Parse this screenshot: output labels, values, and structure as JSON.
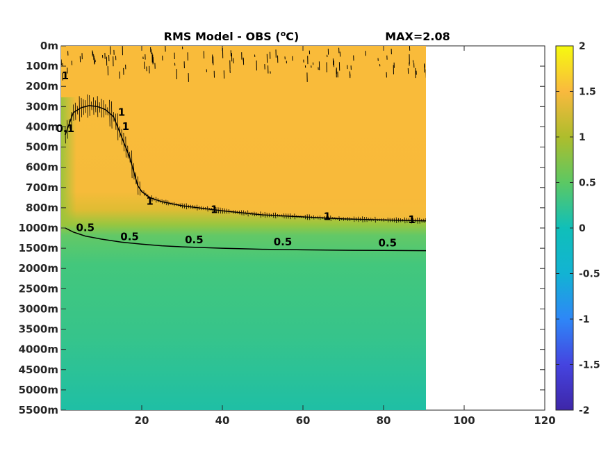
{
  "chart_data": {
    "type": "heatmap",
    "title": "RMS Model - OBS (",
    "title_sup": "o",
    "title_unit": "C)",
    "max_label": "MAX=2.08",
    "xlabel": "",
    "ylabel": "",
    "xlim": [
      0,
      120
    ],
    "x_ticks": [
      20,
      40,
      60,
      80,
      100,
      120
    ],
    "x_tick_labels": [
      "20",
      "40",
      "60",
      "80",
      "100",
      "120"
    ],
    "data_x_extent": [
      1,
      91
    ],
    "y_tick_labels": [
      "0m",
      "100m",
      "200m",
      "300m",
      "400m",
      "500m",
      "600m",
      "700m",
      "800m",
      "1000m",
      "1500m",
      "2000m",
      "2500m",
      "3000m",
      "3500m",
      "4000m",
      "4500m",
      "5000m",
      "5500m"
    ],
    "colorbar": {
      "colormap": "parula",
      "clim": [
        -2,
        2
      ],
      "ticks": [
        2,
        1.5,
        1,
        0.5,
        0,
        -0.5,
        -1,
        -1.5,
        -2
      ],
      "tick_labels": [
        "2",
        "1.5",
        "1",
        "0.5",
        "0",
        "-0.5",
        "-1",
        "-1.5",
        "-2"
      ]
    },
    "field_summary": {
      "upper_value": 1.35,
      "mid_value": 0.9,
      "deep_value": 0.4,
      "bottom_value": 0.2
    },
    "contours": [
      {
        "level": 1,
        "x": [
          1,
          3,
          5,
          7,
          9,
          11,
          13,
          15,
          17,
          18,
          19,
          20,
          22,
          25,
          30,
          40,
          50,
          60,
          70,
          80,
          91
        ],
        "depth_index": [
          4.4,
          3.3,
          3.05,
          2.95,
          3.0,
          3.15,
          3.5,
          4.5,
          5.5,
          6.2,
          6.9,
          7.2,
          7.5,
          7.7,
          7.9,
          8.15,
          8.35,
          8.45,
          8.55,
          8.6,
          8.65
        ]
      },
      {
        "level": 0.5,
        "x": [
          1,
          3,
          6,
          10,
          15,
          20,
          25,
          30,
          40,
          50,
          60,
          70,
          80,
          91
        ],
        "depth_index": [
          9.0,
          9.2,
          9.4,
          9.55,
          9.7,
          9.8,
          9.88,
          9.93,
          10.0,
          10.05,
          10.08,
          10.1,
          10.11,
          10.12
        ]
      }
    ],
    "contour_labels": [
      {
        "text": "0.5",
        "x": 6,
        "depth_index": 9.0
      },
      {
        "text": "0.5",
        "x": 17,
        "depth_index": 9.45
      },
      {
        "text": "0.5",
        "x": 33,
        "depth_index": 9.6
      },
      {
        "text": "0.5",
        "x": 55,
        "depth_index": 9.7
      },
      {
        "text": "0.5",
        "x": 81,
        "depth_index": 9.75
      },
      {
        "text": "1",
        "x": 22,
        "depth_index": 7.7
      },
      {
        "text": "1",
        "x": 38,
        "depth_index": 8.1
      },
      {
        "text": "1",
        "x": 66,
        "depth_index": 8.45
      },
      {
        "text": "1",
        "x": 87,
        "depth_index": 8.6
      },
      {
        "text": "1",
        "x": 16,
        "depth_index": 4.0
      },
      {
        "text": "1",
        "x": 15,
        "depth_index": 3.3
      },
      {
        "text": "0.1",
        "x": 1,
        "depth_index": 4.1
      },
      {
        "text": "1",
        "x": 1,
        "depth_index": 1.5
      }
    ]
  }
}
